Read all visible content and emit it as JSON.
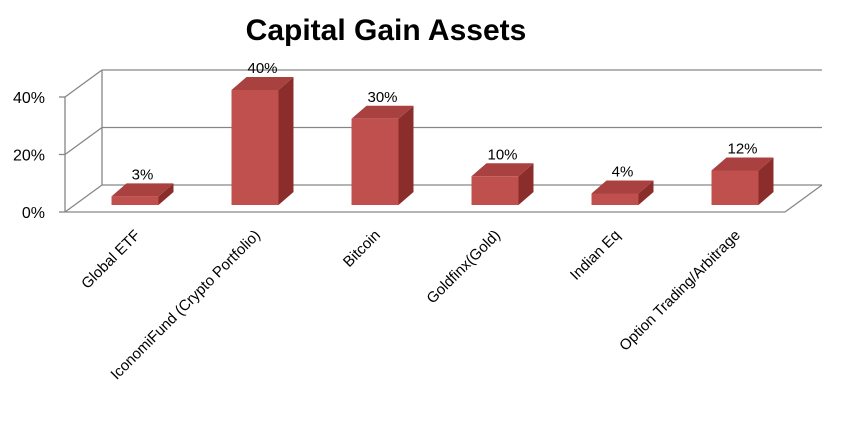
{
  "chart_data": {
    "type": "bar",
    "title": "Capital Gain Assets",
    "categories": [
      "Global ETF",
      "IconomiFund (Crypto Portfolio)",
      "Bitcoin",
      "Goldfinx(Gold)",
      "Indian Eq",
      "Option Trading/Arbitrage"
    ],
    "values": [
      3,
      40,
      30,
      10,
      4,
      12
    ],
    "data_labels": [
      "3%",
      "40%",
      "30%",
      "10%",
      "4%",
      "12%"
    ],
    "ylim": [
      0,
      40
    ],
    "yticks": [
      0,
      20,
      40
    ],
    "ytick_labels": [
      "0%",
      "20%",
      "40%"
    ],
    "grid": true,
    "style": "3d-column",
    "legend": "none",
    "colors": {
      "front": "#C0504D",
      "side": "#8B2E2B",
      "top": "#A94140",
      "grid": "#868686"
    }
  }
}
